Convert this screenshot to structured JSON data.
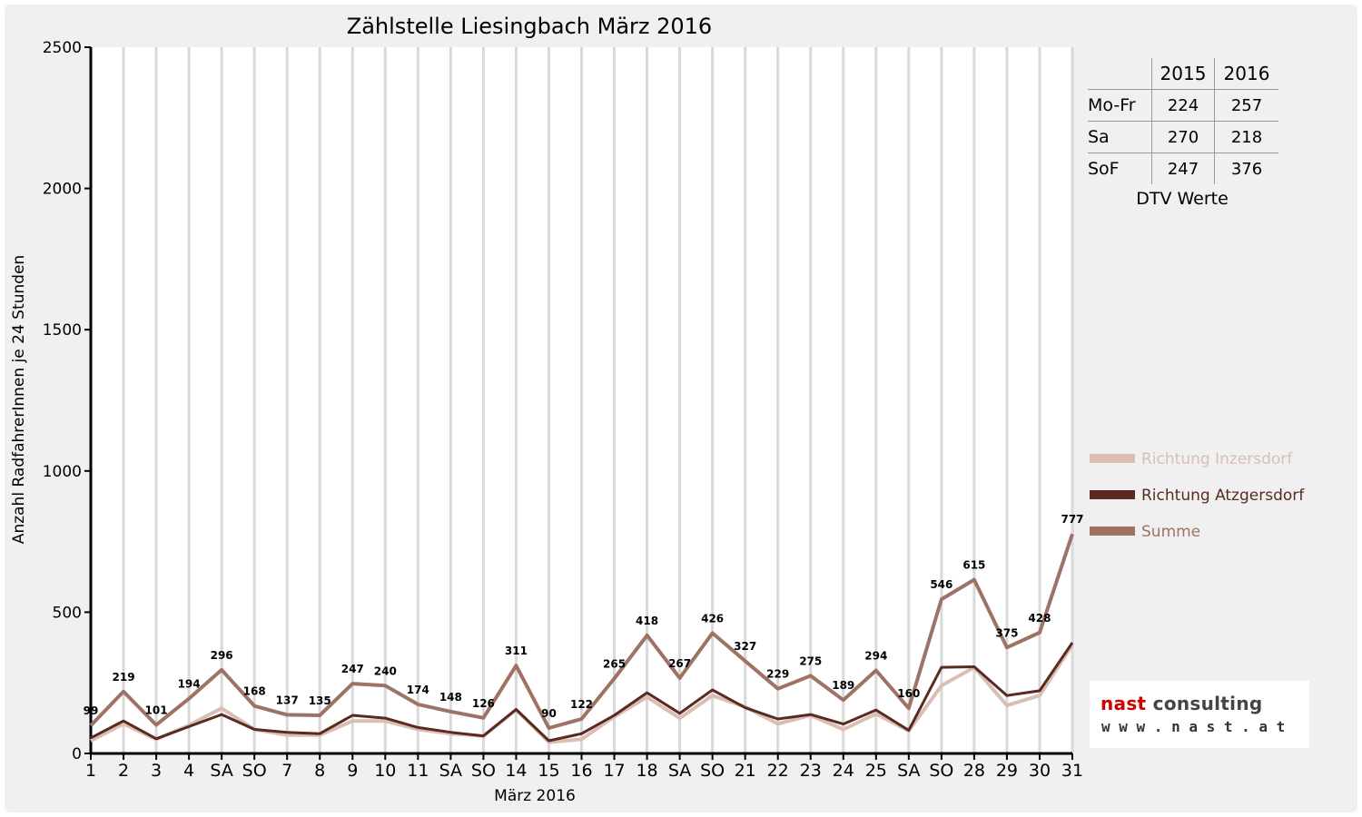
{
  "chart_data": {
    "type": "line",
    "title": "Zählstelle Liesingbach März 2016",
    "xlabel": "März 2016",
    "ylabel": "Anzahl RadfahrerInnen je 24 Stunden",
    "ylim": [
      0,
      2500
    ],
    "yticks": [
      "0",
      "500",
      "1000",
      "1500",
      "2000",
      "2500"
    ],
    "grid": true,
    "legend_position": "right",
    "categories": [
      "1",
      "2",
      "3",
      "4",
      "SA",
      "SO",
      "7",
      "8",
      "9",
      "10",
      "11",
      "SA",
      "SO",
      "14",
      "15",
      "16",
      "17",
      "18",
      "SA",
      "SO",
      "21",
      "22",
      "23",
      "24",
      "25",
      "SA",
      "SO",
      "28",
      "29",
      "30",
      "31"
    ],
    "highlight_categories": [
      5,
      12,
      19,
      26,
      27
    ],
    "highlight_color": "#ff0000",
    "series": [
      {
        "name": "Richtung Inzersdorf",
        "color": "#d9bfb3",
        "values": [
          45,
          105,
          50,
          100,
          160,
          85,
          65,
          65,
          115,
          115,
          85,
          70,
          62,
          155,
          40,
          50,
          130,
          200,
          125,
          205,
          165,
          105,
          135,
          85,
          140,
          80,
          240,
          305,
          170,
          205,
          385
        ]
      },
      {
        "name": "Richtung Atzgersdorf",
        "color": "#5a2a22",
        "values": [
          55,
          115,
          52,
          95,
          138,
          85,
          75,
          70,
          135,
          125,
          92,
          75,
          62,
          156,
          45,
          70,
          135,
          215,
          142,
          225,
          162,
          122,
          138,
          104,
          154,
          82,
          305,
          307,
          205,
          222,
          392
        ]
      },
      {
        "name": "Summe",
        "color": "#9e7265",
        "values": [
          99,
          219,
          101,
          194,
          296,
          168,
          137,
          135,
          247,
          240,
          174,
          148,
          126,
          311,
          90,
          122,
          265,
          418,
          267,
          426,
          327,
          229,
          275,
          189,
          294,
          160,
          546,
          615,
          375,
          428,
          777
        ]
      }
    ],
    "data_labels": [
      "99",
      "219",
      "101",
      "194",
      "296",
      "168",
      "137",
      "135",
      "247",
      "240",
      "174",
      "148",
      "126",
      "311",
      "90",
      "122",
      "265",
      "418",
      "267",
      "426",
      "327",
      "229",
      "275",
      "189",
      "294",
      "160",
      "546",
      "615",
      "375",
      "428",
      "777"
    ]
  },
  "dtv_table": {
    "caption": "DTV Werte",
    "header": [
      "2015",
      "2016"
    ],
    "rows": [
      {
        "label": "Mo-Fr",
        "v2015": "224",
        "v2016": "257"
      },
      {
        "label": "Sa",
        "v2015": "270",
        "v2016": "218"
      },
      {
        "label": "SoF",
        "v2015": "247",
        "v2016": "376"
      }
    ]
  },
  "logo": {
    "name_part1": "nast",
    "name_part2": " consulting",
    "url": "w w w . n a s t . a t",
    "accent_color": "#d10000"
  }
}
